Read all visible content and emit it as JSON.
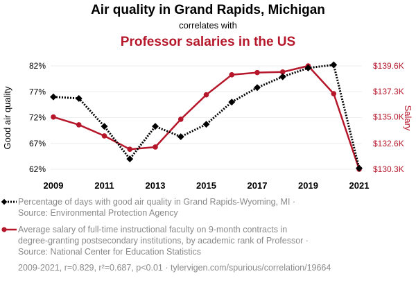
{
  "title": "Air quality in Grand Rapids, Michigan",
  "subtitle": "correlates with",
  "title2": "Professor salaries in the US",
  "legend": {
    "series1_lines": [
      "Percentage of days with good air quality in Grand Rapids-Wyoming, MI ·",
      "Source: Environmental Protection Agency"
    ],
    "series2_lines": [
      "Average salary of full-time instructional faculty on 9-month contracts in",
      "degree-granting postsecondary institutions, by academic rank of Professor ·",
      "Source: National Center for Education Statistics"
    ]
  },
  "footer": "2009-2021, r=0.829, r²=0.687, p<0.01 · tylervigen.com/spurious/correlation/19664",
  "colors": {
    "series1": "#000000",
    "series2": "#b5162a",
    "grid": "#eeeeee"
  },
  "chart_data": {
    "type": "line",
    "x": [
      2009,
      2010,
      2011,
      2012,
      2013,
      2014,
      2015,
      2016,
      2017,
      2018,
      2019,
      2020,
      2021
    ],
    "xticks": [
      2009,
      2011,
      2013,
      2015,
      2017,
      2019,
      2021
    ],
    "xtick_labels": [
      "2009",
      "2011",
      "2013",
      "2015",
      "2017",
      "2019",
      "2021"
    ],
    "ylabel_left": "Good air quality",
    "ylabel_right": "Salary",
    "yticks_left": [
      62,
      67,
      72,
      77,
      82
    ],
    "ytick_labels_left": [
      "62%",
      "67%",
      "72%",
      "77%",
      "82%"
    ],
    "ylim_left": [
      62,
      82
    ],
    "yticks_right": [
      130300,
      132600,
      135000,
      137300,
      139600
    ],
    "ytick_labels_right": [
      "$130.3K",
      "$132.6K",
      "$135.0K",
      "$137.3K",
      "$139.6K"
    ],
    "ylim_right": [
      130300,
      139600
    ],
    "series": [
      {
        "name": "Percentage of days with good air quality in Grand Rapids-Wyoming, MI",
        "axis": "left",
        "style": "dotted",
        "marker": "diamond",
        "values": [
          76.0,
          75.7,
          70.3,
          64.0,
          70.3,
          68.3,
          70.7,
          75.0,
          77.8,
          79.9,
          81.6,
          82.2,
          62.2
        ]
      },
      {
        "name": "Average salary of full-time instructional faculty, Professor",
        "axis": "right",
        "style": "solid",
        "marker": "circle",
        "values": [
          135000,
          134300,
          133300,
          132100,
          132300,
          134800,
          137000,
          138800,
          139000,
          139050,
          139600,
          137100,
          130300
        ]
      }
    ]
  }
}
